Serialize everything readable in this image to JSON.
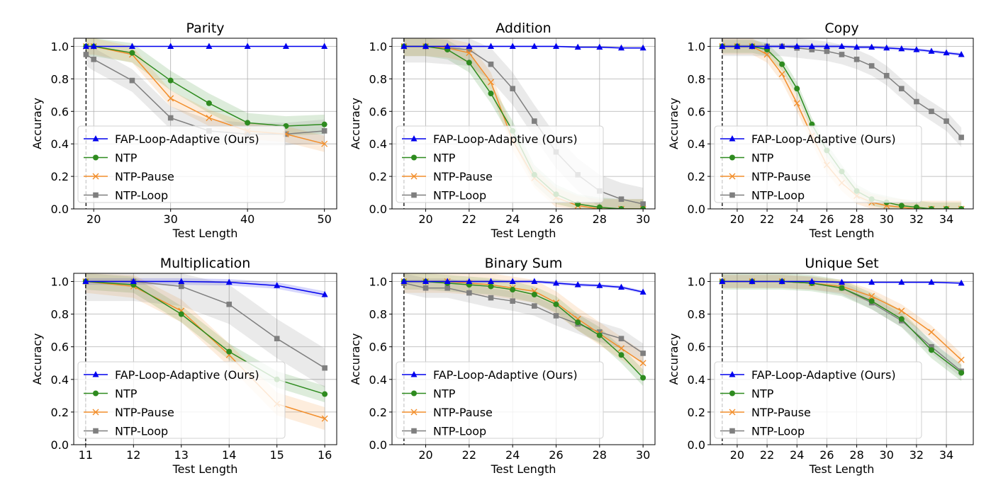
{
  "figure": {
    "ylabel": "Accuracy",
    "xlabel": "Test Length"
  },
  "legend_labels": [
    "FAP-Loop-Adaptive (Ours)",
    "NTP",
    "NTP-Pause",
    "NTP-Loop"
  ],
  "colors": {
    "FAP-Loop-Adaptive (Ours)": "#0000ee",
    "NTP": "#2e8b1f",
    "NTP-Pause": "#f28e2b",
    "NTP-Loop": "#7f7f7f"
  },
  "markers": {
    "FAP-Loop-Adaptive (Ours)": "triangle",
    "NTP": "circle",
    "NTP-Pause": "x",
    "NTP-Loop": "square"
  },
  "chart_data": [
    {
      "type": "line",
      "title": "Parity",
      "xlabel": "Test Length",
      "ylabel": "Accuracy",
      "xlim": [
        17.4,
        51.6
      ],
      "ylim": [
        0,
        1.05
      ],
      "xticks": [
        20,
        30,
        40,
        50
      ],
      "yticks": [
        0.0,
        0.2,
        0.4,
        0.6,
        0.8,
        1.0
      ],
      "train_length": 19,
      "grid": true,
      "legend": "lower left",
      "series": [
        {
          "name": "FAP-Loop-Adaptive (Ours)",
          "x": [
            19,
            20,
            25,
            30,
            35,
            40,
            45,
            50
          ],
          "y": [
            1.0,
            1.0,
            1.0,
            1.0,
            1.0,
            1.0,
            1.0,
            1.0
          ],
          "band": 0.0
        },
        {
          "name": "NTP",
          "x": [
            19,
            20,
            25,
            30,
            35,
            40,
            45,
            50
          ],
          "y": [
            1.0,
            1.0,
            0.96,
            0.79,
            0.65,
            0.53,
            0.51,
            0.52
          ],
          "band": 0.06
        },
        {
          "name": "NTP-Pause",
          "x": [
            19,
            20,
            25,
            30,
            35,
            40,
            45,
            50
          ],
          "y": [
            1.0,
            1.0,
            0.95,
            0.68,
            0.56,
            0.48,
            0.46,
            0.4
          ],
          "band": 0.05
        },
        {
          "name": "NTP-Loop",
          "x": [
            19,
            20,
            25,
            30,
            35,
            40,
            45,
            50
          ],
          "y": [
            0.95,
            0.92,
            0.79,
            0.56,
            0.48,
            0.46,
            0.46,
            0.48
          ],
          "band": 0.07
        }
      ]
    },
    {
      "type": "line",
      "title": "Addition",
      "xlabel": "Test Length",
      "ylabel": "Accuracy",
      "xlim": [
        18.45,
        30.55
      ],
      "ylim": [
        0,
        1.05
      ],
      "xticks": [
        20,
        22,
        24,
        26,
        28,
        30
      ],
      "yticks": [
        0.0,
        0.2,
        0.4,
        0.6,
        0.8,
        1.0
      ],
      "train_length": 19,
      "grid": true,
      "legend": "lower left",
      "series": [
        {
          "name": "FAP-Loop-Adaptive (Ours)",
          "x": [
            19,
            20,
            21,
            22,
            23,
            24,
            25,
            26,
            27,
            28,
            29,
            30
          ],
          "y": [
            1.0,
            1.0,
            1.0,
            1.0,
            1.0,
            1.0,
            1.0,
            1.0,
            0.995,
            0.995,
            0.99,
            0.99
          ],
          "band": 0.005
        },
        {
          "name": "NTP",
          "x": [
            19,
            20,
            21,
            22,
            23,
            24,
            25,
            26,
            27,
            28,
            29,
            30
          ],
          "y": [
            1.0,
            1.0,
            0.98,
            0.9,
            0.71,
            0.48,
            0.21,
            0.09,
            0.03,
            0.01,
            0.0,
            0.0
          ],
          "band": 0.06
        },
        {
          "name": "NTP-Pause",
          "x": [
            19,
            20,
            21,
            22,
            23,
            24,
            25,
            26,
            27,
            28,
            29,
            30
          ],
          "y": [
            1.0,
            1.0,
            0.99,
            0.96,
            0.78,
            0.42,
            0.19,
            0.07,
            0.02,
            0.0,
            0.0,
            0.0
          ],
          "band": 0.06
        },
        {
          "name": "NTP-Loop",
          "x": [
            19,
            20,
            21,
            22,
            23,
            24,
            25,
            26,
            27,
            28,
            29,
            30
          ],
          "y": [
            1.0,
            1.0,
            0.99,
            0.98,
            0.89,
            0.74,
            0.54,
            0.35,
            0.21,
            0.11,
            0.06,
            0.03
          ],
          "band": 0.1
        }
      ]
    },
    {
      "type": "line",
      "title": "Copy",
      "xlabel": "Test Length",
      "ylabel": "Accuracy",
      "xlim": [
        18.2,
        35.8
      ],
      "ylim": [
        0,
        1.05
      ],
      "xticks": [
        20,
        22,
        24,
        26,
        28,
        30,
        32,
        34
      ],
      "yticks": [
        0.0,
        0.2,
        0.4,
        0.6,
        0.8,
        1.0
      ],
      "train_length": 19,
      "grid": true,
      "legend": "lower left",
      "series": [
        {
          "name": "FAP-Loop-Adaptive (Ours)",
          "x": [
            19,
            20,
            21,
            22,
            23,
            24,
            25,
            26,
            27,
            28,
            29,
            30,
            31,
            32,
            33,
            34,
            35
          ],
          "y": [
            1.0,
            1.0,
            1.0,
            1.0,
            1.0,
            1.0,
            1.0,
            1.0,
            1.0,
            0.995,
            0.995,
            0.99,
            0.985,
            0.98,
            0.97,
            0.96,
            0.95
          ],
          "band": 0.01
        },
        {
          "name": "NTP",
          "x": [
            19,
            20,
            21,
            22,
            23,
            24,
            25,
            26,
            27,
            28,
            29,
            30,
            31,
            32,
            33,
            34,
            35
          ],
          "y": [
            1.0,
            1.0,
            1.0,
            0.98,
            0.89,
            0.74,
            0.52,
            0.36,
            0.23,
            0.11,
            0.06,
            0.04,
            0.02,
            0.01,
            0.0,
            0.0,
            0.0
          ],
          "band": 0.04
        },
        {
          "name": "NTP-Pause",
          "x": [
            19,
            20,
            21,
            22,
            23,
            24,
            25,
            26,
            27,
            28,
            29,
            30,
            31,
            32,
            33,
            34,
            35
          ],
          "y": [
            1.0,
            1.0,
            1.0,
            0.95,
            0.83,
            0.65,
            0.45,
            0.27,
            0.16,
            0.08,
            0.04,
            0.02,
            0.01,
            0.0,
            0.0,
            0.0,
            0.0
          ],
          "band": 0.05
        },
        {
          "name": "NTP-Loop",
          "x": [
            19,
            20,
            21,
            22,
            23,
            24,
            25,
            26,
            27,
            28,
            29,
            30,
            31,
            32,
            33,
            34,
            35
          ],
          "y": [
            1.0,
            1.0,
            1.0,
            1.0,
            1.0,
            0.99,
            0.98,
            0.97,
            0.95,
            0.92,
            0.88,
            0.82,
            0.74,
            0.66,
            0.6,
            0.54,
            0.44
          ],
          "band": 0.06
        }
      ]
    },
    {
      "type": "line",
      "title": "Multiplication",
      "xlabel": "Test Length",
      "ylabel": "Accuracy",
      "xlim": [
        10.75,
        16.25
      ],
      "ylim": [
        0,
        1.05
      ],
      "xticks": [
        11,
        12,
        13,
        14,
        15,
        16
      ],
      "yticks": [
        0.0,
        0.2,
        0.4,
        0.6,
        0.8,
        1.0
      ],
      "train_length": 11,
      "grid": true,
      "legend": "lower left",
      "series": [
        {
          "name": "FAP-Loop-Adaptive (Ours)",
          "x": [
            11,
            12,
            13,
            14,
            15,
            16
          ],
          "y": [
            1.0,
            1.0,
            1.0,
            0.995,
            0.975,
            0.92
          ],
          "band": 0.02
        },
        {
          "name": "NTP",
          "x": [
            11,
            12,
            13,
            14,
            15,
            16
          ],
          "y": [
            1.0,
            0.98,
            0.8,
            0.57,
            0.4,
            0.31
          ],
          "band": 0.05
        },
        {
          "name": "NTP-Pause",
          "x": [
            11,
            12,
            13,
            14,
            15,
            16
          ],
          "y": [
            1.0,
            0.97,
            0.82,
            0.55,
            0.25,
            0.16
          ],
          "band": 0.07
        },
        {
          "name": "NTP-Loop",
          "x": [
            11,
            12,
            13,
            14,
            15,
            16
          ],
          "y": [
            1.0,
            1.0,
            0.97,
            0.86,
            0.65,
            0.47
          ],
          "band": 0.12
        }
      ]
    },
    {
      "type": "line",
      "title": "Binary Sum",
      "xlabel": "Test Length",
      "ylabel": "Accuracy",
      "xlim": [
        18.45,
        30.55
      ],
      "ylim": [
        0,
        1.05
      ],
      "xticks": [
        20,
        22,
        24,
        26,
        28,
        30
      ],
      "yticks": [
        0.0,
        0.2,
        0.4,
        0.6,
        0.8,
        1.0
      ],
      "train_length": 19,
      "grid": true,
      "legend": "lower left",
      "series": [
        {
          "name": "FAP-Loop-Adaptive (Ours)",
          "x": [
            19,
            20,
            21,
            22,
            23,
            24,
            25,
            26,
            27,
            28,
            29,
            30
          ],
          "y": [
            1.0,
            1.0,
            1.0,
            1.0,
            1.0,
            1.0,
            1.0,
            0.99,
            0.98,
            0.975,
            0.965,
            0.935
          ],
          "band": 0.01
        },
        {
          "name": "NTP",
          "x": [
            19,
            20,
            21,
            22,
            23,
            24,
            25,
            26,
            27,
            28,
            29,
            30
          ],
          "y": [
            1.0,
            1.0,
            0.99,
            0.98,
            0.97,
            0.95,
            0.92,
            0.86,
            0.75,
            0.67,
            0.55,
            0.41
          ],
          "band": 0.05
        },
        {
          "name": "NTP-Pause",
          "x": [
            19,
            20,
            21,
            22,
            23,
            24,
            25,
            26,
            27,
            28,
            29,
            30
          ],
          "y": [
            1.0,
            1.0,
            1.0,
            0.99,
            0.98,
            0.96,
            0.94,
            0.87,
            0.77,
            0.68,
            0.59,
            0.5
          ],
          "band": 0.07
        },
        {
          "name": "NTP-Loop",
          "x": [
            19,
            20,
            21,
            22,
            23,
            24,
            25,
            26,
            27,
            28,
            29,
            30
          ],
          "y": [
            0.99,
            0.96,
            0.96,
            0.93,
            0.9,
            0.88,
            0.85,
            0.79,
            0.74,
            0.69,
            0.65,
            0.56
          ],
          "band": 0.06
        }
      ]
    },
    {
      "type": "line",
      "title": "Unique Set",
      "xlabel": "Test Length",
      "ylabel": "Accuracy",
      "xlim": [
        18.2,
        35.8
      ],
      "ylim": [
        0,
        1.05
      ],
      "xticks": [
        20,
        22,
        24,
        26,
        28,
        30,
        32,
        34
      ],
      "yticks": [
        0.0,
        0.2,
        0.4,
        0.6,
        0.8,
        1.0
      ],
      "train_length": 19,
      "grid": true,
      "legend": "lower left",
      "series": [
        {
          "name": "FAP-Loop-Adaptive (Ours)",
          "x": [
            19,
            21,
            23,
            25,
            27,
            29,
            31,
            33,
            35
          ],
          "y": [
            1.0,
            1.0,
            1.0,
            1.0,
            0.995,
            0.995,
            0.995,
            0.995,
            0.99
          ],
          "band": 0.005
        },
        {
          "name": "NTP",
          "x": [
            19,
            21,
            23,
            25,
            27,
            29,
            31,
            33,
            35
          ],
          "y": [
            1.0,
            1.0,
            1.0,
            0.99,
            0.96,
            0.88,
            0.77,
            0.58,
            0.44
          ],
          "band": 0.05
        },
        {
          "name": "NTP-Pause",
          "x": [
            19,
            21,
            23,
            25,
            27,
            29,
            31,
            33,
            35
          ],
          "y": [
            1.0,
            1.0,
            1.0,
            0.99,
            0.97,
            0.91,
            0.82,
            0.69,
            0.52
          ],
          "band": 0.04
        },
        {
          "name": "NTP-Loop",
          "x": [
            19,
            21,
            23,
            25,
            27,
            29,
            31,
            33,
            35
          ],
          "y": [
            1.0,
            1.0,
            1.0,
            0.99,
            0.96,
            0.87,
            0.76,
            0.6,
            0.45
          ],
          "band": 0.04
        }
      ]
    }
  ]
}
